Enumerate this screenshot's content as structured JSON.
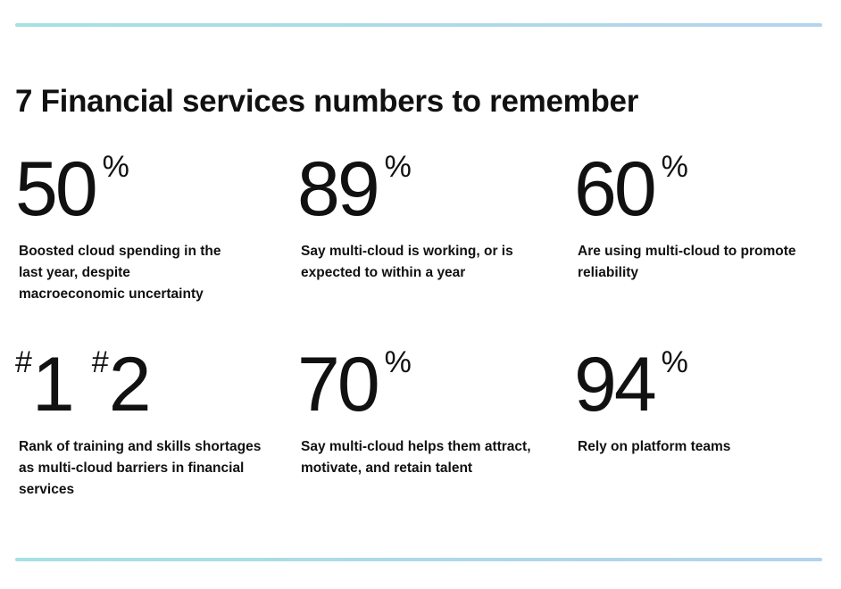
{
  "colors": {
    "rule": "#a6e1e3",
    "rule_end": "#b4d3ee",
    "text": "#111111"
  },
  "headline": "7 Financial services numbers to remember",
  "stats": [
    {
      "value": "50",
      "suffix": "%",
      "description": "Boosted cloud spending in the last year, despite macroeconomic uncertainty"
    },
    {
      "value": "89",
      "suffix": "%",
      "description": "Say multi-cloud is working, or is expected to within a year"
    },
    {
      "value": "60",
      "suffix": "%",
      "description": "Are using multi-cloud to promote reliability"
    },
    {
      "ranks": [
        {
          "prefix": "#",
          "value": "1"
        },
        {
          "prefix": "#",
          "value": "2"
        }
      ],
      "description": "Rank of training and skills shortages as multi-cloud barriers in financial services"
    },
    {
      "value": "70",
      "suffix": "%",
      "description": "Say multi-cloud helps them attract, motivate, and retain talent"
    },
    {
      "value": "94",
      "suffix": "%",
      "description": "Rely on platform teams"
    }
  ]
}
